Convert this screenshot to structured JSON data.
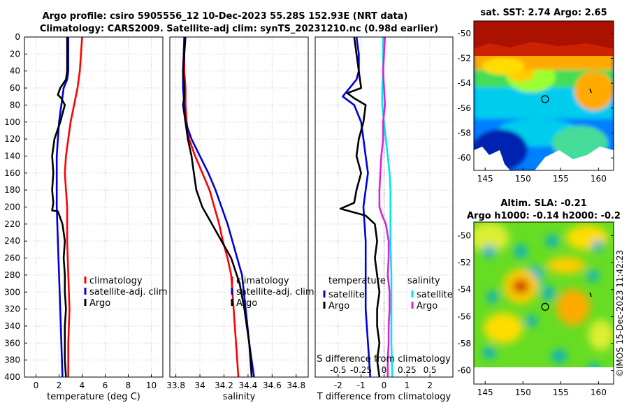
{
  "title": {
    "line1": "Argo profile: csiro 5905556_12 10-Dec-2023 55.28S 152.93E (NRT data)",
    "line2": "Climatology: CARS2009. Satellite-adj clim: synTS_20231210.nc (0.98d earlier)"
  },
  "colors": {
    "climatology": "#ff0000",
    "satellite": "#0000dd",
    "argo": "#000000",
    "sat_salinity": "#00e5ee",
    "argo_salinity": "#e020e0"
  },
  "chart_data": [
    {
      "id": "temperature",
      "type": "line",
      "xlabel": "temperature (deg C)",
      "ylabel": "",
      "xlim": [
        -1,
        11
      ],
      "ylim": [
        400,
        0
      ],
      "xticks": [
        "0",
        "2",
        "4",
        "6",
        "8",
        "10"
      ],
      "xtick_values": [
        0,
        2,
        4,
        6,
        8,
        10
      ],
      "yticks": [
        "0",
        "20",
        "40",
        "60",
        "80",
        "100",
        "120",
        "140",
        "160",
        "180",
        "200",
        "220",
        "240",
        "260",
        "280",
        "300",
        "320",
        "340",
        "360",
        "380",
        "400"
      ],
      "ytick_values": [
        0,
        20,
        40,
        60,
        80,
        100,
        120,
        140,
        160,
        180,
        200,
        220,
        240,
        260,
        280,
        300,
        320,
        340,
        360,
        380,
        400
      ],
      "legend": [
        "climatology",
        "satellite-adj. clim",
        "Argo"
      ],
      "series": [
        {
          "name": "climatology",
          "color": "#ff0000",
          "points": [
            [
              4.0,
              0
            ],
            [
              3.9,
              20
            ],
            [
              3.8,
              40
            ],
            [
              3.6,
              60
            ],
            [
              3.3,
              80
            ],
            [
              3.0,
              100
            ],
            [
              2.8,
              120
            ],
            [
              2.6,
              140
            ],
            [
              2.5,
              160
            ],
            [
              2.6,
              180
            ],
            [
              2.7,
              200
            ],
            [
              2.7,
              240
            ],
            [
              2.8,
              280
            ],
            [
              2.9,
              320
            ],
            [
              2.8,
              360
            ],
            [
              2.8,
              400
            ]
          ]
        },
        {
          "name": "satellite-adj. clim",
          "color": "#0000dd",
          "points": [
            [
              2.8,
              0
            ],
            [
              2.8,
              20
            ],
            [
              2.8,
              40
            ],
            [
              2.7,
              50
            ],
            [
              2.4,
              60
            ],
            [
              2.2,
              80
            ],
            [
              2.0,
              100
            ],
            [
              1.9,
              120
            ],
            [
              1.8,
              140
            ],
            [
              1.8,
              160
            ],
            [
              1.8,
              180
            ],
            [
              1.8,
              200
            ],
            [
              1.9,
              240
            ],
            [
              2.0,
              280
            ],
            [
              2.1,
              320
            ],
            [
              2.2,
              360
            ],
            [
              2.3,
              400
            ]
          ]
        },
        {
          "name": "Argo",
          "color": "#000000",
          "points": [
            [
              2.7,
              0
            ],
            [
              2.7,
              20
            ],
            [
              2.7,
              40
            ],
            [
              2.6,
              50
            ],
            [
              2.1,
              60
            ],
            [
              1.9,
              68
            ],
            [
              2.2,
              72
            ],
            [
              2.5,
              80
            ],
            [
              2.1,
              100
            ],
            [
              1.6,
              120
            ],
            [
              1.4,
              140
            ],
            [
              1.5,
              160
            ],
            [
              1.4,
              180
            ],
            [
              1.5,
              195
            ],
            [
              1.4,
              204
            ],
            [
              1.9,
              205
            ],
            [
              2.3,
              220
            ],
            [
              2.5,
              240
            ],
            [
              2.4,
              260
            ],
            [
              2.5,
              280
            ],
            [
              2.5,
              300
            ],
            [
              2.6,
              320
            ],
            [
              2.5,
              340
            ],
            [
              2.5,
              360
            ],
            [
              2.5,
              380
            ],
            [
              2.6,
              400
            ]
          ]
        }
      ]
    },
    {
      "id": "salinity",
      "type": "line",
      "xlabel": "salinity",
      "xlim": [
        33.75,
        34.9
      ],
      "ylim": [
        400,
        0
      ],
      "xticks": [
        "33.8",
        "34",
        "34.2",
        "34.4",
        "34.6",
        "34.8"
      ],
      "xtick_values": [
        33.8,
        34.0,
        34.2,
        34.4,
        34.6,
        34.8
      ],
      "legend": [
        "climatology",
        "satellite-adj. clim",
        "Argo"
      ],
      "series": [
        {
          "name": "climatology",
          "color": "#ff0000",
          "points": [
            [
              33.87,
              0
            ],
            [
              33.87,
              40
            ],
            [
              33.88,
              60
            ],
            [
              33.88,
              80
            ],
            [
              33.89,
              100
            ],
            [
              33.91,
              120
            ],
            [
              33.96,
              140
            ],
            [
              34.02,
              160
            ],
            [
              34.08,
              180
            ],
            [
              34.12,
              200
            ],
            [
              34.16,
              220
            ],
            [
              34.19,
              240
            ],
            [
              34.23,
              260
            ],
            [
              34.26,
              280
            ],
            [
              34.28,
              320
            ],
            [
              34.3,
              360
            ],
            [
              34.32,
              400
            ]
          ]
        },
        {
          "name": "satellite-adj. clim",
          "color": "#0000dd",
          "points": [
            [
              33.87,
              0
            ],
            [
              33.86,
              40
            ],
            [
              33.86,
              60
            ],
            [
              33.87,
              80
            ],
            [
              33.88,
              100
            ],
            [
              33.93,
              120
            ],
            [
              34.0,
              140
            ],
            [
              34.07,
              160
            ],
            [
              34.13,
              180
            ],
            [
              34.18,
              200
            ],
            [
              34.23,
              220
            ],
            [
              34.27,
              240
            ],
            [
              34.31,
              260
            ],
            [
              34.35,
              280
            ],
            [
              34.38,
              320
            ],
            [
              34.41,
              360
            ],
            [
              34.45,
              400
            ]
          ]
        },
        {
          "name": "Argo",
          "color": "#000000",
          "points": [
            [
              33.88,
              0
            ],
            [
              33.87,
              20
            ],
            [
              33.86,
              40
            ],
            [
              33.87,
              60
            ],
            [
              33.87,
              70
            ],
            [
              33.86,
              80
            ],
            [
              33.88,
              100
            ],
            [
              33.9,
              120
            ],
            [
              33.93,
              140
            ],
            [
              33.95,
              160
            ],
            [
              33.97,
              180
            ],
            [
              34.02,
              200
            ],
            [
              34.1,
              220
            ],
            [
              34.18,
              240
            ],
            [
              34.26,
              260
            ],
            [
              34.33,
              290
            ],
            [
              34.37,
              320
            ],
            [
              34.41,
              360
            ],
            [
              34.43,
              400
            ]
          ]
        }
      ]
    },
    {
      "id": "differences",
      "type": "line",
      "xlabel": "T difference from climatology",
      "xlabel_top": "S difference from climatology",
      "xlim": [
        -3,
        3
      ],
      "ylim": [
        400,
        0
      ],
      "xticks": [
        "-2",
        "-1",
        "0",
        "1",
        "2"
      ],
      "xtick_values": [
        -2,
        -1,
        0,
        1,
        2
      ],
      "s_ticks": [
        "-0.5",
        "-0.25",
        "0",
        "0.25",
        "0.5"
      ],
      "s_tick_values": [
        -0.5,
        -0.25,
        0,
        0.25,
        0.5
      ],
      "legend_t": {
        "title": "temperature",
        "entries": [
          "satellite",
          "Argo"
        ]
      },
      "legend_s": {
        "title": "salinity",
        "entries": [
          "satellite",
          "Argo"
        ]
      },
      "series": [
        {
          "name": "T satellite",
          "color": "#0000dd",
          "points": [
            [
              -1.2,
              0
            ],
            [
              -1.1,
              20
            ],
            [
              -1.1,
              40
            ],
            [
              -1.2,
              50
            ],
            [
              -1.8,
              70
            ],
            [
              -1.3,
              80
            ],
            [
              -1.0,
              100
            ],
            [
              -0.9,
              120
            ],
            [
              -0.8,
              140
            ],
            [
              -0.7,
              160
            ],
            [
              -0.8,
              180
            ],
            [
              -0.9,
              200
            ],
            [
              -0.8,
              240
            ],
            [
              -0.8,
              280
            ],
            [
              -0.8,
              320
            ],
            [
              -0.7,
              360
            ],
            [
              -0.6,
              400
            ]
          ]
        },
        {
          "name": "T Argo",
          "color": "#000000",
          "points": [
            [
              -1.3,
              0
            ],
            [
              -1.2,
              20
            ],
            [
              -1.1,
              40
            ],
            [
              -1.0,
              60
            ],
            [
              -1.6,
              66
            ],
            [
              -1.3,
              72
            ],
            [
              -0.8,
              80
            ],
            [
              -0.9,
              100
            ],
            [
              -1.1,
              120
            ],
            [
              -1.2,
              140
            ],
            [
              -1.0,
              160
            ],
            [
              -1.2,
              180
            ],
            [
              -1.3,
              195
            ],
            [
              -1.9,
              202
            ],
            [
              -0.8,
              210
            ],
            [
              -0.4,
              220
            ],
            [
              -0.3,
              240
            ],
            [
              -0.4,
              260
            ],
            [
              -0.3,
              280
            ],
            [
              -0.2,
              300
            ],
            [
              -0.3,
              320
            ],
            [
              -0.3,
              340
            ],
            [
              -0.2,
              360
            ],
            [
              -0.3,
              380
            ],
            [
              -0.2,
              400
            ]
          ]
        },
        {
          "name": "S satellite",
          "color": "#00e5ee",
          "points": [
            [
              -0.01,
              0
            ],
            [
              -0.01,
              40
            ],
            [
              -0.02,
              60
            ],
            [
              -0.02,
              80
            ],
            [
              0.0,
              100
            ],
            [
              0.02,
              120
            ],
            [
              0.04,
              140
            ],
            [
              0.06,
              160
            ],
            [
              0.07,
              180
            ],
            [
              0.07,
              200
            ],
            [
              0.07,
              240
            ],
            [
              0.08,
              280
            ],
            [
              0.08,
              320
            ],
            [
              0.08,
              360
            ],
            [
              0.09,
              400
            ]
          ]
        },
        {
          "name": "S Argo",
          "color": "#e020e0",
          "points": [
            [
              0.01,
              0
            ],
            [
              0.0,
              20
            ],
            [
              -0.01,
              40
            ],
            [
              0.0,
              60
            ],
            [
              0.01,
              80
            ],
            [
              -0.01,
              100
            ],
            [
              -0.01,
              120
            ],
            [
              -0.03,
              140
            ],
            [
              -0.04,
              160
            ],
            [
              -0.05,
              180
            ],
            [
              -0.05,
              200
            ],
            [
              -0.02,
              210
            ],
            [
              0.02,
              220
            ],
            [
              0.05,
              240
            ],
            [
              0.05,
              260
            ],
            [
              0.04,
              280
            ],
            [
              0.06,
              300
            ],
            [
              0.06,
              320
            ],
            [
              0.05,
              340
            ],
            [
              0.05,
              360
            ],
            [
              0.04,
              380
            ],
            [
              0.04,
              400
            ]
          ]
        }
      ]
    },
    {
      "id": "sst-map",
      "type": "heatmap",
      "title": "sat. SST: 2.74 Argo: 2.65",
      "xlim": [
        143.5,
        162
      ],
      "ylim": [
        -61,
        -49
      ],
      "xticks": [
        "145",
        "150",
        "155",
        "160"
      ],
      "xtick_values": [
        145,
        150,
        155,
        160
      ],
      "yticks": [
        "-50",
        "-52",
        "-54",
        "-56",
        "-58",
        "-60"
      ],
      "ytick_values": [
        -50,
        -52,
        -54,
        -56,
        -58,
        -60
      ],
      "profile_location": [
        152.93,
        -55.28
      ]
    },
    {
      "id": "sla-map",
      "type": "heatmap",
      "title": "Altim. SLA: -0.21",
      "subtitle": "Argo h1000: -0.14 h2000: -0.2",
      "xlim": [
        143.5,
        162
      ],
      "ylim": [
        -61,
        -49
      ],
      "xticks": [
        "145",
        "150",
        "155",
        "160"
      ],
      "xtick_values": [
        145,
        150,
        155,
        160
      ],
      "yticks": [
        "-50",
        "-52",
        "-54",
        "-56",
        "-58",
        "-60"
      ],
      "ytick_values": [
        -50,
        -52,
        -54,
        -56,
        -58,
        -60
      ],
      "profile_location": [
        152.93,
        -55.28
      ]
    }
  ],
  "watermark": "©IMOS 15-Dec-2023 11:42:23"
}
